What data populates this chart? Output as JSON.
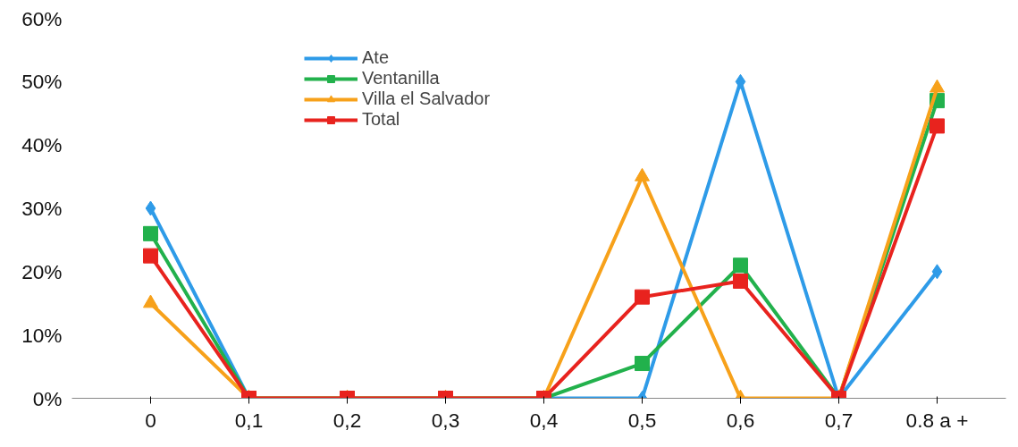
{
  "chart_data": {
    "type": "line",
    "categories": [
      "0",
      "0,1",
      "0,2",
      "0,3",
      "0,4",
      "0,5",
      "0,6",
      "0,7",
      "0.8 a +"
    ],
    "ylim": [
      0,
      60
    ],
    "yticks": [
      {
        "value": 0,
        "label": "0%"
      },
      {
        "value": 10,
        "label": "10%"
      },
      {
        "value": 20,
        "label": "20%"
      },
      {
        "value": 30,
        "label": "30%"
      },
      {
        "value": 40,
        "label": "40%"
      },
      {
        "value": 50,
        "label": "50%"
      },
      {
        "value": 60,
        "label": "60%"
      }
    ],
    "grid": false,
    "legend": "top",
    "line_style": "solid",
    "series": [
      {
        "name": "Ate",
        "color": "#2e9be8",
        "marker": "diamond",
        "values": [
          30,
          0,
          0,
          0,
          0,
          0,
          50,
          0,
          20
        ]
      },
      {
        "name": "Ventanilla",
        "color": "#22b14c",
        "marker": "square",
        "values": [
          26,
          0,
          0,
          0,
          0,
          5.5,
          21,
          0,
          47
        ]
      },
      {
        "name": "Villa el Salvador",
        "color": "#f7a11a",
        "marker": "triangle",
        "values": [
          15,
          0,
          0,
          0,
          0,
          35,
          0,
          0,
          49
        ]
      },
      {
        "name": "Total",
        "color": "#e8231e",
        "marker": "square",
        "values": [
          22.5,
          0,
          0,
          0,
          0,
          16,
          18.5,
          0,
          43
        ]
      }
    ]
  }
}
